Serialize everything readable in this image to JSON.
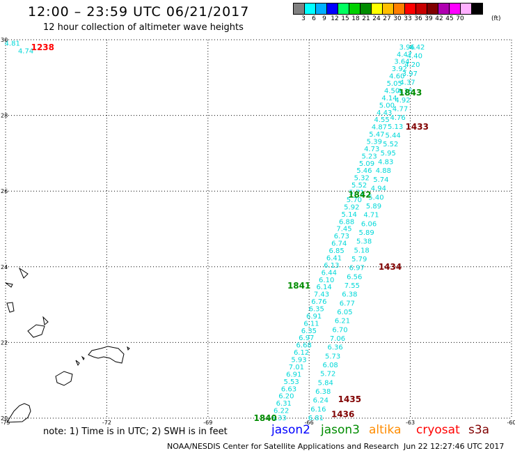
{
  "header": {
    "title": "12:00 – 23:59 UTC 06/21/2017",
    "subtitle": "12 hour collection of altimeter wave heights"
  },
  "legend_scale": {
    "colors": [
      "#808080",
      "#00ffff",
      "#00b0ff",
      "#0000ff",
      "#00ff60",
      "#00d000",
      "#008c00",
      "#ffff00",
      "#ffbf00",
      "#ff7f00",
      "#ff0000",
      "#c80000",
      "#800000",
      "#b000b0",
      "#ff00ff",
      "#ffb0ff",
      "#000000"
    ],
    "labels": [
      "3",
      "6",
      "9",
      "12",
      "15",
      "18",
      "21",
      "24",
      "27",
      "30",
      "33",
      "36",
      "39",
      "42",
      "45",
      "70"
    ],
    "unit": "(ft)"
  },
  "axes": {
    "x_ticks": [
      "-75",
      "-72",
      "-69",
      "-66",
      "-63",
      "-60"
    ],
    "y_ticks": [
      "30",
      "28",
      "26",
      "24",
      "22",
      "20"
    ],
    "lon_range": [
      -75,
      -60
    ],
    "lat_range": [
      20,
      30
    ]
  },
  "tracks": [
    {
      "sat": "s3a",
      "color": "#00d8d8",
      "start": [
        -66.9,
        20.0
      ],
      "end": [
        -63.1,
        29.8
      ],
      "values": [
        "6.33",
        "6.22",
        "6.31",
        "6.20",
        "6.63",
        "5.53",
        "6.91",
        "7.01",
        "5.93",
        "6.12",
        "6.68",
        "6.97",
        "6.35",
        "6.11",
        "6.91",
        "6.35",
        "6.76",
        "7.43",
        "6.14",
        "6.10",
        "6.44",
        "6.13",
        "6.41",
        "6.85",
        "6.74",
        "6.73",
        "7.45",
        "6.88",
        "5.14",
        "5.92",
        "5.70",
        "5.71",
        "5.52",
        "5.32",
        "5.46",
        "5.09",
        "5.23",
        "4.73",
        "5.39",
        "5.47",
        "4.87",
        "4.55",
        "4.43",
        "5.00",
        "4.14",
        "4.50",
        "5.05",
        "4.60",
        "3.92",
        "3.64",
        "4.47",
        "3.96"
      ]
    },
    {
      "sat": "s3a",
      "color": "#00d8d8",
      "start": [
        -65.8,
        20.0
      ],
      "end": [
        -62.8,
        29.8
      ],
      "values": [
        "6.81",
        "6.16",
        "6.24",
        "6.38",
        "5.84",
        "5.72",
        "6.08",
        "5.73",
        "6.36",
        "7.06",
        "6.70",
        "6.21",
        "6.05",
        "6.77",
        "6.38",
        "7.55",
        "6.56",
        "6.97",
        "5.79",
        "5.18",
        "5.38",
        "5.89",
        "6.06",
        "4.71",
        "5.89",
        "5.40",
        "4.94",
        "5.74",
        "4.88",
        "4.83",
        "5.95",
        "5.52",
        "5.44",
        "5.13",
        "4.76",
        "4.77",
        "4.92",
        "4.35",
        "4.37",
        "3.97",
        "4.20",
        "4.40",
        "4.42"
      ]
    },
    {
      "sat": "s3a",
      "color": "#00d8d8",
      "start": [
        -74.8,
        29.9
      ],
      "end": [
        -74.4,
        29.7
      ],
      "values": [
        "4.81",
        "4.74"
      ]
    }
  ],
  "pass_labels": [
    {
      "text": "1238",
      "color": "#ff0000",
      "lon": -73.9,
      "lat": 29.8
    },
    {
      "text": "1843",
      "color": "#008c00",
      "lon": -63.0,
      "lat": 28.6
    },
    {
      "text": "1433",
      "color": "#800000",
      "lon": -62.8,
      "lat": 27.7
    },
    {
      "text": "1842",
      "color": "#008c00",
      "lon": -64.5,
      "lat": 25.9
    },
    {
      "text": "1434",
      "color": "#800000",
      "lon": -63.6,
      "lat": 24.0
    },
    {
      "text": "1841",
      "color": "#008c00",
      "lon": -66.3,
      "lat": 23.5
    },
    {
      "text": "1435",
      "color": "#800000",
      "lon": -64.8,
      "lat": 20.5
    },
    {
      "text": "1840",
      "color": "#008c00",
      "lon": -67.3,
      "lat": 20.0
    },
    {
      "text": "1436",
      "color": "#800000",
      "lon": -65.0,
      "lat": 20.1
    }
  ],
  "footer": {
    "note": "note: 1) Time is in UTC; 2) SWH is in feet",
    "satellites": [
      {
        "name": "jason2",
        "color": "#0000ff"
      },
      {
        "name": "jason3",
        "color": "#008c00"
      },
      {
        "name": "altika",
        "color": "#ff8c00"
      },
      {
        "name": "cryosat",
        "color": "#ff0000"
      },
      {
        "name": "s3a",
        "color": "#800000"
      }
    ],
    "credit": "NOAA/NESDIS Center for Satellite Applications and Research",
    "timestamp": "Jun 22 12:27:46 UTC 2017"
  }
}
